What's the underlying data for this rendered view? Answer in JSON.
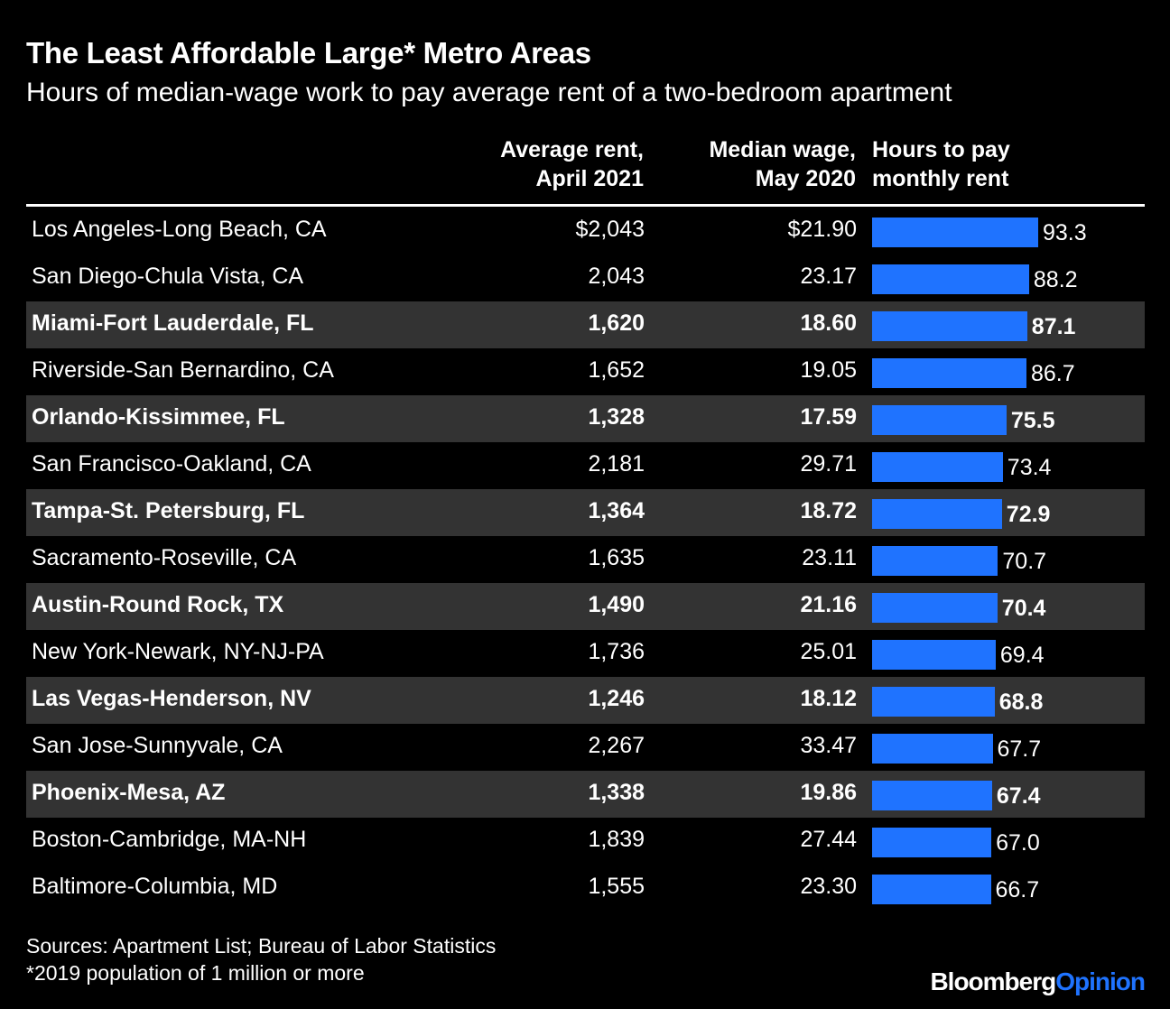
{
  "title": "The Least Affordable Large* Metro Areas",
  "subtitle": "Hours of median-wage work to pay average rent of a two-bedroom apartment",
  "headers": {
    "rent_line1": "Average rent,",
    "rent_line2": "April 2021",
    "wage_line1": "Median wage,",
    "wage_line2": "May 2020",
    "hours_line1": "Hours to pay",
    "hours_line2": "monthly rent"
  },
  "footer": {
    "source": "Sources: Apartment List; Bureau of Labor Statistics",
    "note": "*2019 population of 1 million or more",
    "brand_main": "Bloomberg",
    "brand_accent": "Opinion"
  },
  "colors": {
    "bar": "#1f73ff",
    "highlight_row": "#333333",
    "background": "#000000"
  },
  "chart_data": {
    "type": "table",
    "title": "The Least Affordable Large* Metro Areas",
    "subtitle": "Hours of median-wage work to pay average rent of a two-bedroom apartment",
    "columns": [
      "",
      "Average rent, April 2021",
      "Median wage, May 2020",
      "Hours to pay monthly rent"
    ],
    "bar_scale_max": 93.3,
    "rows": [
      {
        "metro": "Los Angeles-Long Beach, CA",
        "rent": "$2,043",
        "wage": "$21.90",
        "hours": "93.3",
        "highlight": false
      },
      {
        "metro": "San Diego-Chula Vista, CA",
        "rent": "2,043",
        "wage": "23.17",
        "hours": "88.2",
        "highlight": false
      },
      {
        "metro": "Miami-Fort Lauderdale, FL",
        "rent": "1,620",
        "wage": "18.60",
        "hours": "87.1",
        "highlight": true
      },
      {
        "metro": "Riverside-San Bernardino, CA",
        "rent": "1,652",
        "wage": "19.05",
        "hours": "86.7",
        "highlight": false
      },
      {
        "metro": "Orlando-Kissimmee, FL",
        "rent": "1,328",
        "wage": "17.59",
        "hours": "75.5",
        "highlight": true
      },
      {
        "metro": "San Francisco-Oakland, CA",
        "rent": "2,181",
        "wage": "29.71",
        "hours": "73.4",
        "highlight": false
      },
      {
        "metro": "Tampa-St. Petersburg, FL",
        "rent": "1,364",
        "wage": "18.72",
        "hours": "72.9",
        "highlight": true
      },
      {
        "metro": "Sacramento-Roseville, CA",
        "rent": "1,635",
        "wage": "23.11",
        "hours": "70.7",
        "highlight": false
      },
      {
        "metro": "Austin-Round Rock, TX",
        "rent": "1,490",
        "wage": "21.16",
        "hours": "70.4",
        "highlight": true
      },
      {
        "metro": "New York-Newark, NY-NJ-PA",
        "rent": "1,736",
        "wage": "25.01",
        "hours": "69.4",
        "highlight": false
      },
      {
        "metro": "Las Vegas-Henderson, NV",
        "rent": "1,246",
        "wage": "18.12",
        "hours": "68.8",
        "highlight": true
      },
      {
        "metro": "San Jose-Sunnyvale, CA",
        "rent": "2,267",
        "wage": "33.47",
        "hours": "67.7",
        "highlight": false
      },
      {
        "metro": "Phoenix-Mesa, AZ",
        "rent": "1,338",
        "wage": "19.86",
        "hours": "67.4",
        "highlight": true
      },
      {
        "metro": "Boston-Cambridge, MA-NH",
        "rent": "1,839",
        "wage": "27.44",
        "hours": "67.0",
        "highlight": false
      },
      {
        "metro": "Baltimore-Columbia, MD",
        "rent": "1,555",
        "wage": "23.30",
        "hours": "66.7",
        "highlight": false
      }
    ]
  }
}
